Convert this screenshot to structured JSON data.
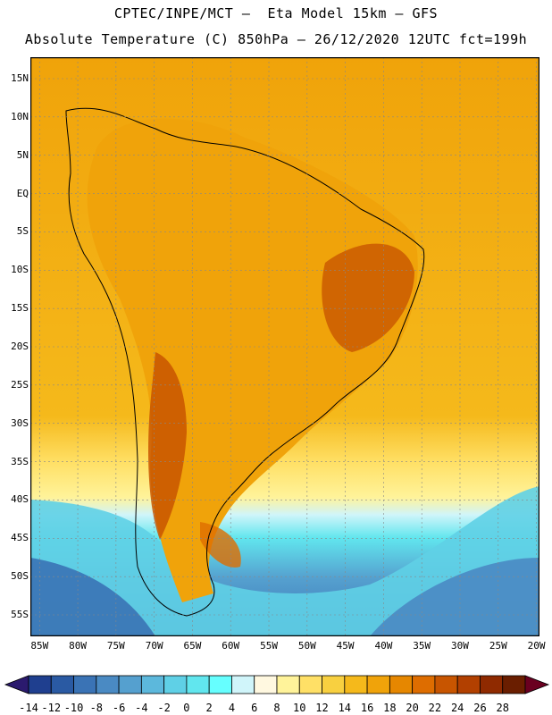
{
  "header": {
    "line1": "CPTEC/INPE/MCT –  Eta Model 15km – GFS",
    "line2": "Absolute Temperature (C) 850hPa – 26/12/2020 12UTC fct=199h"
  },
  "map": {
    "lat_labels": [
      "15N",
      "10N",
      "5N",
      "EQ",
      "5S",
      "10S",
      "15S",
      "20S",
      "25S",
      "30S",
      "35S",
      "40S",
      "45S",
      "50S",
      "55S"
    ],
    "lat_values": [
      15,
      10,
      5,
      0,
      -5,
      -10,
      -15,
      -20,
      -25,
      -30,
      -35,
      -40,
      -45,
      -50,
      -55
    ],
    "lon_labels": [
      "85W",
      "80W",
      "75W",
      "70W",
      "65W",
      "60W",
      "55W",
      "50W",
      "45W",
      "40W",
      "35W",
      "30W",
      "25W",
      "20W"
    ],
    "lon_values": [
      -85,
      -80,
      -75,
      -70,
      -65,
      -60,
      -55,
      -50,
      -45,
      -40,
      -35,
      -30,
      -25,
      -20
    ]
  },
  "colorbar": {
    "labels": [
      "-14",
      "-12",
      "-10",
      "-8",
      "-6",
      "-4",
      "-2",
      "0",
      "2",
      "4",
      "6",
      "8",
      "10",
      "12",
      "14",
      "16",
      "18",
      "20",
      "22",
      "24",
      "26",
      "28"
    ],
    "colors": [
      "#1f3f8f",
      "#2a5aa3",
      "#3a73b5",
      "#4a8ac3",
      "#55a0cf",
      "#5cb8dc",
      "#5fd0e6",
      "#61e6ee",
      "#66ffff",
      "#d0f5fa",
      "#fff8e0",
      "#fff39a",
      "#ffe066",
      "#f8d040",
      "#f5b91b",
      "#f0a30a",
      "#e68700",
      "#de6d00",
      "#c85500",
      "#b24000",
      "#8f2a00",
      "#6a1e00"
    ]
  }
}
